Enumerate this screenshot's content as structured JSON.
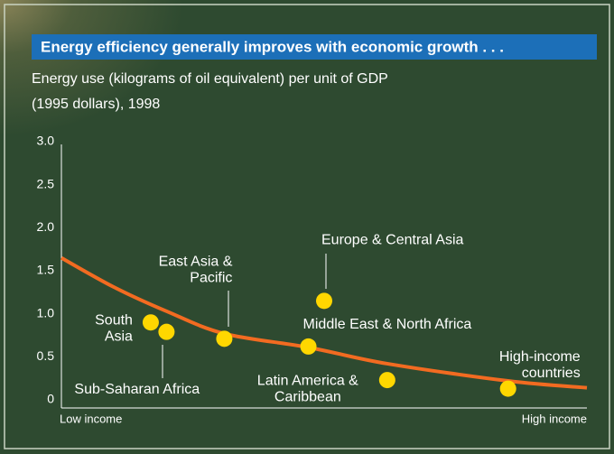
{
  "chart_data": {
    "type": "scatter",
    "title": "Energy efficiency generally improves with economic growth . . .",
    "subtitle": [
      "Energy use (kilograms of oil equivalent) per unit of GDP",
      "(1995 dollars), 1998"
    ],
    "x_axis_labels": [
      "Low income",
      "High income"
    ],
    "xlim": [
      0,
      1
    ],
    "ylim": [
      0,
      3
    ],
    "yticks": [
      0,
      0.5,
      {
        "value": 1,
        "label": "1.0"
      },
      1.5,
      {
        "value": 2,
        "label": "2.0"
      },
      2.5,
      {
        "value": 3,
        "label": "3.0"
      }
    ],
    "point_color": "#ffd700",
    "points": [
      {
        "label": [
          "South",
          "Asia"
        ],
        "x": 0.17,
        "y": 0.9
      },
      {
        "label": [
          "Sub-Saharan Africa"
        ],
        "x": 0.2,
        "y": 0.79
      },
      {
        "label": [
          "East Asia &",
          "Pacific"
        ],
        "x": 0.31,
        "y": 0.71
      },
      {
        "label": [
          "Europe & Central Asia"
        ],
        "x": 0.5,
        "y": 1.15
      },
      {
        "label": [
          "Middle East & North Africa"
        ],
        "x": 0.47,
        "y": 0.62
      },
      {
        "label": [
          "Latin America &",
          "Caribbean"
        ],
        "x": 0.62,
        "y": 0.23
      },
      {
        "label": [
          "High-income",
          "countries"
        ],
        "x": 0.85,
        "y": 0.13
      }
    ],
    "curve": {
      "color": "#f26b21",
      "x": [
        0,
        0.1,
        0.2,
        0.31,
        0.47,
        0.62,
        0.85,
        1
      ],
      "y": [
        1.65,
        1.31,
        1.03,
        0.77,
        0.61,
        0.42,
        0.22,
        0.14
      ]
    }
  }
}
